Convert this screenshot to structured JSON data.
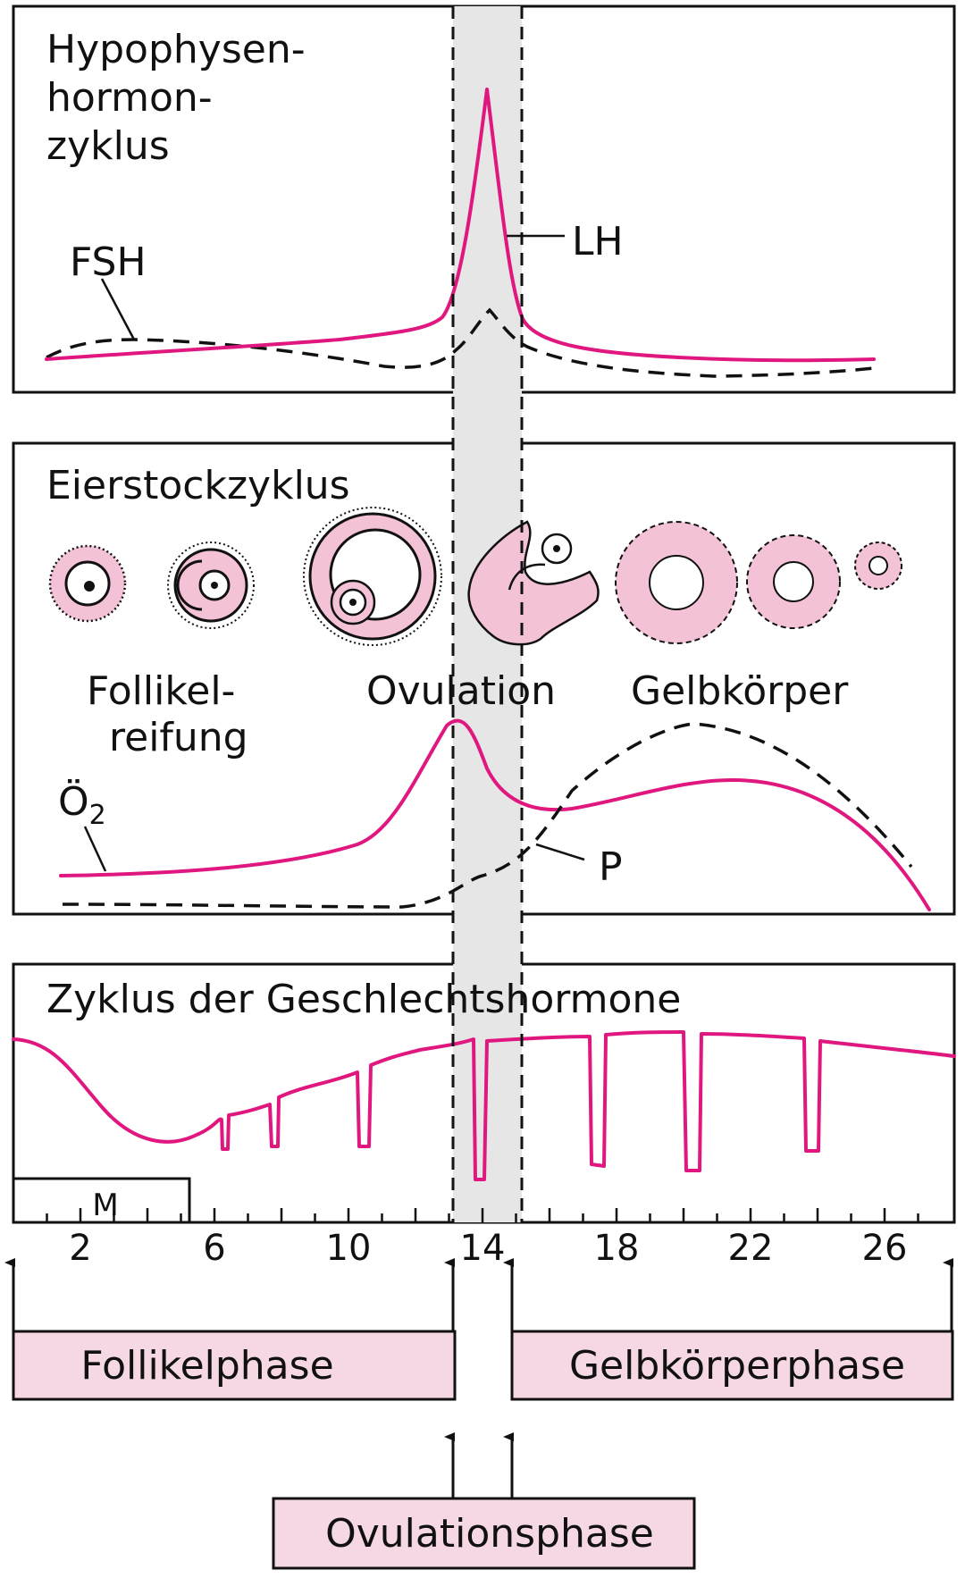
{
  "colors": {
    "accent": "#e0177f",
    "follicle_fill": "#f4c2d6",
    "phase_box_fill": "#f6d8e5",
    "ovulation_band": "#e6e6e6"
  },
  "panel_top": {
    "title_lines": [
      "Hypophysen-",
      "hormon-",
      "zyklus"
    ],
    "fsh_label": "FSH",
    "lh_label": "LH"
  },
  "panel_mid": {
    "title": "Eierstockzyklus",
    "follikel_label_lines": [
      "Follikel-",
      "reifung"
    ],
    "ovulation_label": "Ovulation",
    "gelbkoerper_label": "Gelbkörper",
    "oestrogen_label": "Ö",
    "oestrogen_subscript": "2",
    "progesterone_label": "P"
  },
  "panel_bottom": {
    "title": "Zyklus der Geschlechtshormone",
    "menstruation_label": "M"
  },
  "axis": {
    "tick_labels": [
      "2",
      "6",
      "10",
      "14",
      "18",
      "22",
      "26"
    ]
  },
  "phases": {
    "follicular": "Follikelphase",
    "luteal": "Gelbkörperphase",
    "ovulation": "Ovulationsphase"
  },
  "chart_data": {
    "type": "line",
    "x_domain_days": [
      0,
      28
    ],
    "ovulation_window_days": [
      13,
      15
    ],
    "menstruation_days": [
      0,
      5
    ],
    "x_ticks": [
      2,
      6,
      10,
      14,
      18,
      22,
      26
    ]
  }
}
